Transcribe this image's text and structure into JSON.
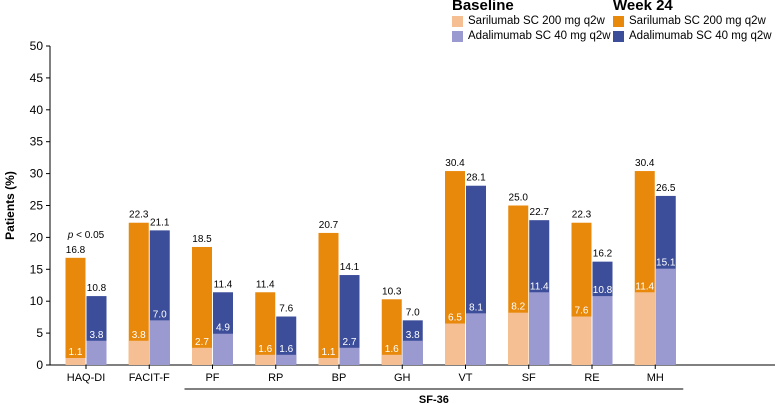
{
  "legend": {
    "baseline": {
      "title": "Baseline",
      "items": [
        {
          "label": "Sarilumab SC 200 mg q2w",
          "color": "#f5bf93"
        },
        {
          "label": "Adalimumab SC 40 mg q2w",
          "color": "#9a9ad0"
        }
      ]
    },
    "week24": {
      "title": "Week 24",
      "items": [
        {
          "label": "Sarilumab SC 200 mg q2w",
          "color": "#e8890c"
        },
        {
          "label": "Adalimumab SC 40 mg q2w",
          "color": "#3c4d9a"
        }
      ]
    }
  },
  "chart_data": {
    "type": "bar",
    "ylabel": "Patients (%)",
    "ylim": [
      0,
      50
    ],
    "yticks": [
      0,
      5,
      10,
      15,
      20,
      25,
      30,
      35,
      40,
      45,
      50
    ],
    "categories": [
      "HAQ-DI",
      "FACIT-F",
      "PF",
      "RP",
      "BP",
      "GH",
      "VT",
      "SF",
      "RE",
      "MH"
    ],
    "group_label": "SF-36",
    "group_categories": [
      "PF",
      "RP",
      "BP",
      "GH",
      "VT",
      "SF",
      "RE",
      "MH"
    ],
    "series": [
      {
        "name": "Baseline Sarilumab SC 200 mg q2w",
        "values": [
          1.1,
          3.8,
          2.7,
          1.6,
          1.1,
          1.6,
          6.5,
          8.2,
          7.6,
          11.4
        ]
      },
      {
        "name": "Baseline Adalimumab SC 40 mg q2w",
        "values": [
          3.8,
          7.0,
          4.9,
          1.6,
          2.7,
          3.8,
          8.1,
          11.4,
          10.8,
          15.1
        ]
      },
      {
        "name": "Week 24 Sarilumab SC 200 mg q2w",
        "values": [
          16.8,
          22.3,
          18.5,
          11.4,
          20.7,
          10.3,
          30.4,
          25.0,
          22.3,
          30.4
        ]
      },
      {
        "name": "Week 24 Adalimumab SC 40 mg q2w",
        "values": [
          10.8,
          21.1,
          11.4,
          7.6,
          14.1,
          7.0,
          28.1,
          22.7,
          16.2,
          26.5
        ]
      }
    ],
    "baseline_labels_sarilumab": [
      "1.1",
      "3.8",
      "2.7",
      "1.6",
      "1.1",
      "1.6",
      "6.5",
      "8.2",
      "7.6",
      "11.4"
    ],
    "baseline_labels_adalimumab": [
      "3.8",
      "7.0",
      "4.9",
      "1.6",
      "2.7",
      "3.8",
      "8.1",
      "11.4",
      "10.8",
      "15.1"
    ],
    "week24_labels_sarilumab": [
      "16.8",
      "22.3",
      "18.5",
      "11.4",
      "20.7",
      "10.3",
      "30.4",
      "25.0",
      "22.3",
      "30.4"
    ],
    "week24_labels_adalimumab": [
      "10.8",
      "21.1",
      "11.4",
      "7.6",
      "14.1",
      "7.0",
      "28.1",
      "22.7",
      "16.2",
      "26.5"
    ],
    "annotation": {
      "category": "HAQ-DI",
      "text": "p < 0.05"
    }
  }
}
